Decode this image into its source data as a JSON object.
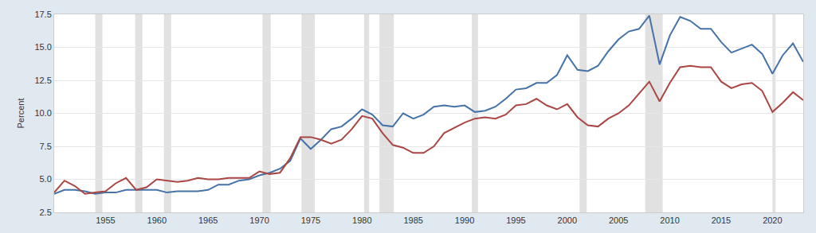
{
  "chart_data": {
    "type": "line",
    "y_label": "Percent",
    "x": [
      1950,
      1951,
      1952,
      1953,
      1954,
      1955,
      1956,
      1957,
      1958,
      1959,
      1960,
      1961,
      1962,
      1963,
      1964,
      1965,
      1966,
      1967,
      1968,
      1969,
      1970,
      1971,
      1972,
      1973,
      1974,
      1975,
      1976,
      1977,
      1978,
      1979,
      1980,
      1981,
      1982,
      1983,
      1984,
      1985,
      1986,
      1987,
      1988,
      1989,
      1990,
      1991,
      1992,
      1993,
      1994,
      1995,
      1996,
      1997,
      1998,
      1999,
      2000,
      2001,
      2002,
      2003,
      2004,
      2005,
      2006,
      2007,
      2008,
      2009,
      2010,
      2011,
      2012,
      2013,
      2014,
      2015,
      2016,
      2017,
      2018,
      2019,
      2020,
      2021,
      2022,
      2023
    ],
    "series": [
      {
        "color": "#4572a7",
        "values": [
          3.9,
          4.2,
          4.2,
          4.1,
          3.9,
          4.0,
          4.0,
          4.2,
          4.2,
          4.2,
          4.2,
          4.0,
          4.1,
          4.1,
          4.1,
          4.2,
          4.6,
          4.6,
          4.9,
          5.0,
          5.3,
          5.5,
          5.8,
          6.4,
          8.1,
          7.3,
          8.0,
          8.8,
          9.0,
          9.6,
          10.3,
          9.9,
          9.1,
          9.0,
          10.0,
          9.6,
          9.9,
          10.5,
          10.6,
          10.5,
          10.6,
          10.1,
          10.2,
          10.5,
          11.1,
          11.8,
          11.9,
          12.3,
          12.3,
          12.9,
          14.4,
          13.3,
          13.2,
          13.6,
          14.7,
          15.6,
          16.2,
          16.4,
          17.4,
          13.7,
          15.9,
          17.3,
          17.0,
          16.4,
          16.4,
          15.4,
          14.6,
          14.9,
          15.2,
          14.5,
          13.0,
          14.4,
          15.3,
          13.9
        ]
      },
      {
        "color": "#aa4643",
        "values": [
          4.0,
          4.9,
          4.5,
          3.9,
          4.0,
          4.1,
          4.7,
          5.1,
          4.2,
          4.4,
          5.0,
          4.9,
          4.8,
          4.9,
          5.1,
          5.0,
          5.0,
          5.1,
          5.1,
          5.1,
          5.6,
          5.4,
          5.5,
          6.6,
          8.2,
          8.2,
          8.0,
          7.7,
          8.0,
          8.8,
          9.8,
          9.6,
          8.5,
          7.6,
          7.4,
          7.0,
          7.0,
          7.5,
          8.5,
          8.9,
          9.3,
          9.6,
          9.7,
          9.6,
          9.9,
          10.6,
          10.7,
          11.1,
          10.6,
          10.3,
          10.7,
          9.7,
          9.1,
          9.0,
          9.6,
          10.0,
          10.6,
          11.5,
          12.4,
          10.9,
          12.3,
          13.5,
          13.6,
          13.5,
          13.5,
          12.4,
          11.9,
          12.2,
          12.3,
          11.7,
          10.1,
          10.8,
          11.6,
          11.0
        ]
      }
    ],
    "recessions": [
      {
        "start": 1954.0,
        "end": 1954.7
      },
      {
        "start": 1957.9,
        "end": 1958.6
      },
      {
        "start": 1960.7,
        "end": 1961.4
      },
      {
        "start": 1970.3,
        "end": 1971.1
      },
      {
        "start": 1974.1,
        "end": 1975.4
      },
      {
        "start": 1980.2,
        "end": 1980.7
      },
      {
        "start": 1981.7,
        "end": 1983.1
      },
      {
        "start": 1990.7,
        "end": 1991.3
      },
      {
        "start": 2001.2,
        "end": 2001.9
      },
      {
        "start": 2007.6,
        "end": 2009.3
      },
      {
        "start": 2020.0,
        "end": 2020.3
      }
    ],
    "xlim": [
      1950,
      2023
    ],
    "xticks": [
      1955,
      1960,
      1965,
      1970,
      1975,
      1980,
      1985,
      1990,
      1995,
      2000,
      2005,
      2010,
      2015,
      2020
    ],
    "ylim": [
      2.5,
      17.5
    ],
    "yticks": [
      2.5,
      5.0,
      7.5,
      10.0,
      12.5,
      15.0,
      17.5
    ],
    "grid": true
  }
}
